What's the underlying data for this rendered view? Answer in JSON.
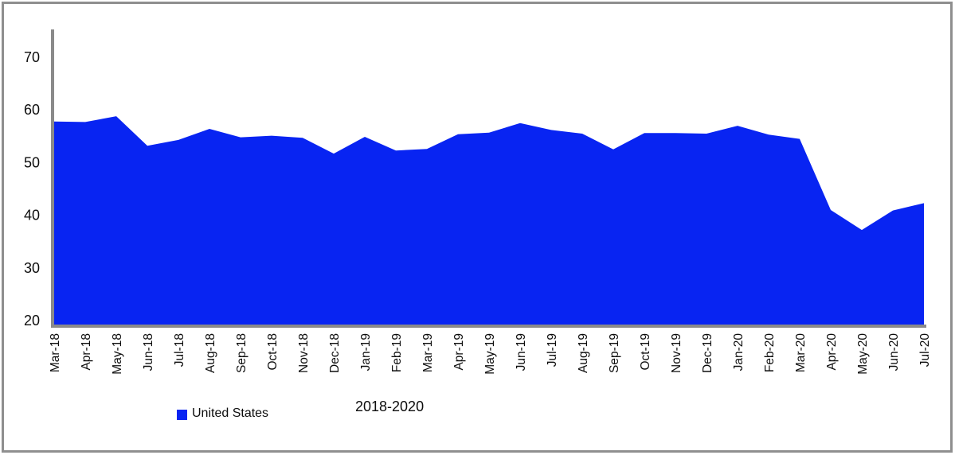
{
  "chart_data": {
    "type": "area",
    "title": "2018-2020",
    "categories": [
      "Mar-18",
      "Apr-18",
      "May-18",
      "Jun-18",
      "Jul-18",
      "Aug-18",
      "Sep-18",
      "Oct-18",
      "Nov-18",
      "Dec-18",
      "Jan-19",
      "Feb-19",
      "Mar-19",
      "Apr-19",
      "May-19",
      "Jun-19",
      "Jul-19",
      "Aug-19",
      "Sep-19",
      "Oct-19",
      "Nov-19",
      "Dec-19",
      "Jan-20",
      "Feb-20",
      "Mar-20",
      "Apr-20",
      "May-20",
      "Jun-20",
      "Jul-20"
    ],
    "series": [
      {
        "name": "United States",
        "color": "#0824f2",
        "values": [
          57.8,
          57.7,
          58.8,
          53.2,
          54.3,
          56.4,
          54.8,
          55.1,
          54.7,
          51.7,
          54.9,
          52.3,
          52.6,
          55.4,
          55.7,
          57.5,
          56.2,
          55.5,
          52.5,
          55.6,
          55.6,
          55.5,
          57.0,
          55.3,
          54.5,
          41.0,
          37.2,
          40.9,
          42.3
        ]
      }
    ],
    "xlabel": "",
    "ylabel": "",
    "ylim": [
      20,
      75
    ],
    "yticks": [
      20,
      30,
      40,
      50,
      60,
      70
    ],
    "grid": false,
    "legend_position": "bottom-left",
    "axis_color": "#8a8a8a"
  }
}
